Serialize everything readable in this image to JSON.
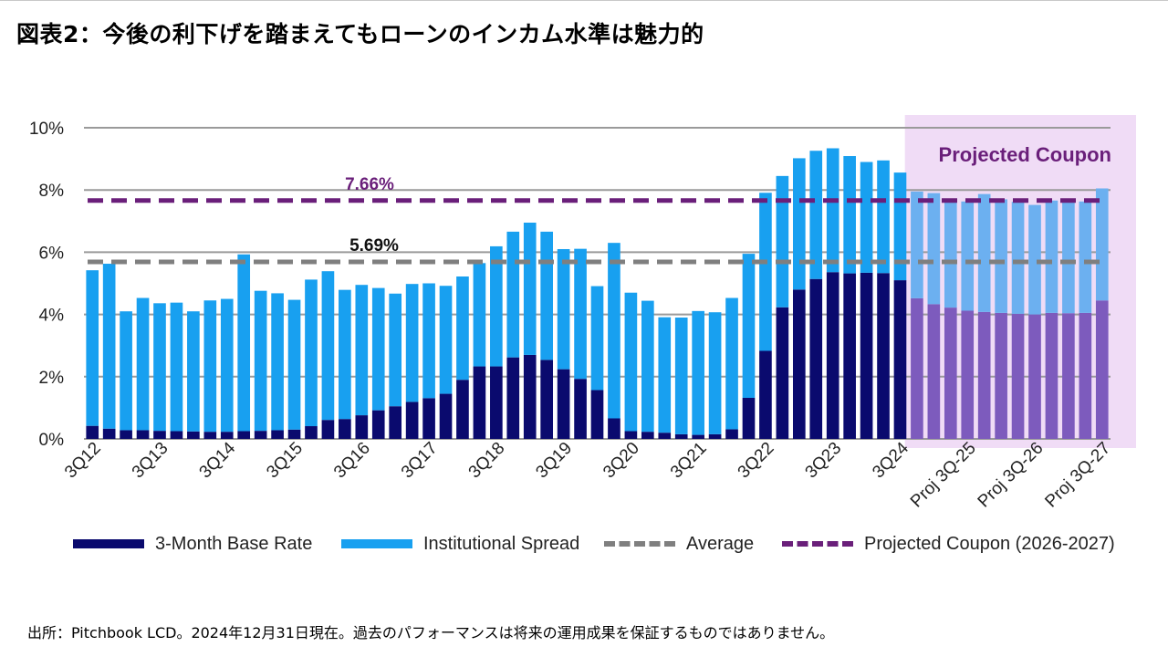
{
  "title": "図表2：今後の利下げを踏まえてもローンのインカム水準は魅力的",
  "source": "出所：Pitchbook LCD。2024年12月31日現在。過去のパフォーマンスは将来の運用成果を保証するものではありません。",
  "colors": {
    "base": "#0a0a6e",
    "spread": "#18a0f0",
    "proj_base": "#7d5bbd",
    "proj_spread": "#6cb0f0",
    "projected_bg": "#f0dcf6",
    "average": "#7f7f7f",
    "projected_line": "#6a1f7a",
    "grid": "#9a9a9a"
  },
  "chart_data": {
    "type": "bar",
    "stacked": true,
    "ylim": [
      0,
      10
    ],
    "yticks": [
      "0%",
      "2%",
      "4%",
      "6%",
      "8%",
      "10%"
    ],
    "categories": [
      "3Q12",
      "4Q12",
      "1Q13",
      "2Q13",
      "3Q13",
      "4Q13",
      "1Q14",
      "2Q14",
      "3Q14",
      "4Q14",
      "1Q15",
      "2Q15",
      "3Q15",
      "4Q15",
      "1Q16",
      "2Q16",
      "3Q16",
      "4Q16",
      "1Q17",
      "2Q17",
      "3Q17",
      "4Q17",
      "1Q18",
      "2Q18",
      "3Q18",
      "4Q18",
      "1Q19",
      "2Q19",
      "3Q19",
      "4Q19",
      "1Q20",
      "2Q20",
      "3Q20",
      "4Q20",
      "1Q21",
      "2Q21",
      "3Q21",
      "4Q21",
      "1Q22",
      "2Q22",
      "3Q22",
      "4Q22",
      "1Q23",
      "2Q23",
      "3Q23",
      "4Q23",
      "1Q24",
      "2Q24",
      "3Q24",
      "Proj 4Q-24",
      "Proj 1Q-25",
      "Proj 2Q-25",
      "Proj 3Q-25",
      "Proj 4Q-25",
      "Proj 1Q-26",
      "Proj 2Q-26",
      "Proj 3Q-26",
      "Proj 4Q-26",
      "Proj 1Q-27",
      "Proj 2Q-27",
      "Proj 3Q-27"
    ],
    "x_tick_labels": [
      "3Q12",
      "3Q13",
      "3Q14",
      "3Q15",
      "3Q16",
      "3Q17",
      "3Q18",
      "3Q19",
      "3Q20",
      "3Q21",
      "3Q22",
      "3Q23",
      "3Q24",
      "Proj 3Q-25",
      "Proj 3Q-26",
      "Proj 3Q-27"
    ],
    "projected_from_index": 49,
    "series": [
      {
        "name": "3-Month Base Rate",
        "values": [
          0.42,
          0.33,
          0.28,
          0.28,
          0.26,
          0.25,
          0.24,
          0.23,
          0.23,
          0.25,
          0.26,
          0.28,
          0.3,
          0.41,
          0.61,
          0.64,
          0.76,
          0.92,
          1.05,
          1.19,
          1.31,
          1.45,
          1.9,
          2.33,
          2.33,
          2.62,
          2.7,
          2.54,
          2.24,
          1.93,
          1.57,
          0.66,
          0.25,
          0.23,
          0.2,
          0.15,
          0.13,
          0.15,
          0.31,
          1.32,
          2.83,
          4.23,
          4.8,
          5.14,
          5.36,
          5.32,
          5.34,
          5.33,
          5.1,
          4.52,
          4.33,
          4.22,
          4.12,
          4.08,
          4.05,
          4.02,
          4.0,
          4.05,
          4.04,
          4.05,
          4.45
        ]
      },
      {
        "name": "Institutional Spread",
        "values": [
          5.0,
          5.3,
          3.82,
          4.25,
          4.1,
          4.13,
          3.86,
          4.22,
          4.27,
          5.68,
          4.5,
          4.4,
          4.17,
          4.71,
          4.78,
          4.15,
          4.19,
          3.93,
          3.62,
          3.79,
          3.69,
          3.47,
          3.32,
          3.32,
          3.86,
          4.04,
          4.25,
          4.12,
          3.86,
          4.18,
          3.34,
          5.64,
          4.45,
          4.21,
          3.71,
          3.75,
          3.98,
          3.92,
          4.22,
          4.63,
          5.08,
          4.22,
          4.22,
          4.12,
          3.98,
          3.77,
          3.56,
          3.62,
          3.46,
          3.43,
          3.57,
          3.5,
          3.51,
          3.79,
          3.65,
          3.6,
          3.52,
          3.61,
          3.59,
          3.58,
          3.6
        ]
      }
    ],
    "lines": [
      {
        "name": "Average",
        "value": 5.69,
        "label": "5.69%"
      },
      {
        "name": "Projected Coupon (2026-2027)",
        "value": 7.66,
        "label": "7.66%"
      }
    ],
    "annotation": "Projected Coupon",
    "xlabel": "",
    "ylabel": ""
  },
  "legend": {
    "base": "3-Month Base Rate",
    "spread": "Institutional Spread",
    "average": "Average",
    "projected": "Projected Coupon (2026-2027)"
  }
}
